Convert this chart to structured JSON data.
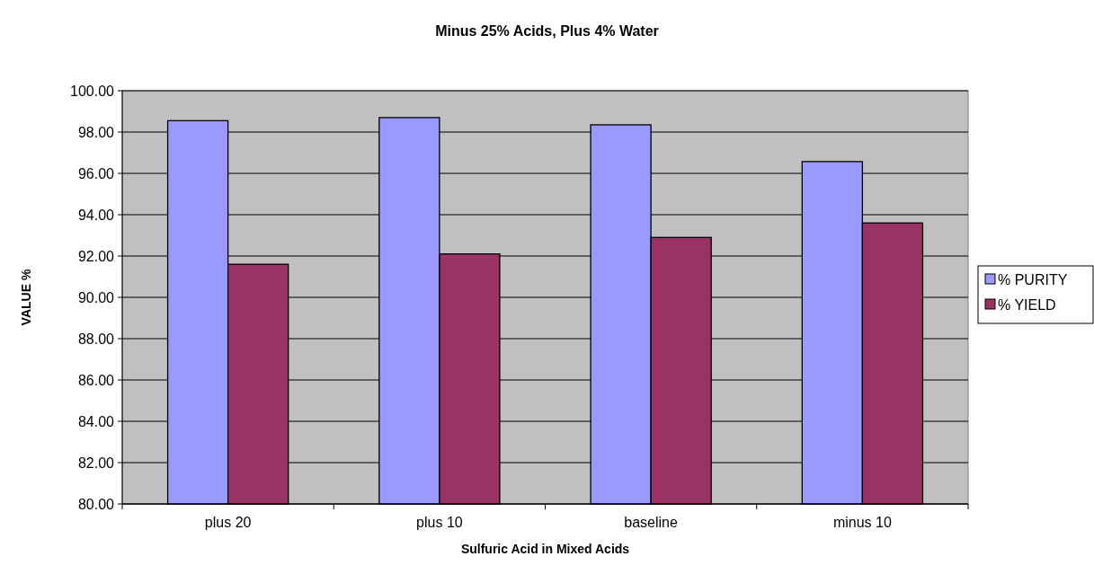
{
  "chart_data": {
    "type": "bar",
    "title": "Minus 25% Acids, Plus 4% Water",
    "xlabel": "Sulfuric Acid in Mixed Acids",
    "ylabel": "VALUE %",
    "categories": [
      "plus 20",
      "plus 10",
      "baseline",
      "minus 10"
    ],
    "series": [
      {
        "name": "% PURITY",
        "color": "#9999ff",
        "values": [
          98.55,
          98.7,
          98.35,
          96.57
        ]
      },
      {
        "name": "% YIELD",
        "color": "#993366",
        "values": [
          91.6,
          92.1,
          92.9,
          93.6
        ]
      }
    ],
    "ylim": [
      80,
      100
    ],
    "yticks": [
      {
        "value": 80,
        "label": "80.00"
      },
      {
        "value": 82,
        "label": "82.00"
      },
      {
        "value": 84,
        "label": "84.00"
      },
      {
        "value": 86,
        "label": "86.00"
      },
      {
        "value": 88,
        "label": "88.00"
      },
      {
        "value": 90,
        "label": "90.00"
      },
      {
        "value": 92,
        "label": "92.00"
      },
      {
        "value": 94,
        "label": "94.00"
      },
      {
        "value": 96,
        "label": "96.00"
      },
      {
        "value": 98,
        "label": "98.00"
      },
      {
        "value": 100,
        "label": "100.00"
      }
    ],
    "grid": "y",
    "legend": "right"
  }
}
